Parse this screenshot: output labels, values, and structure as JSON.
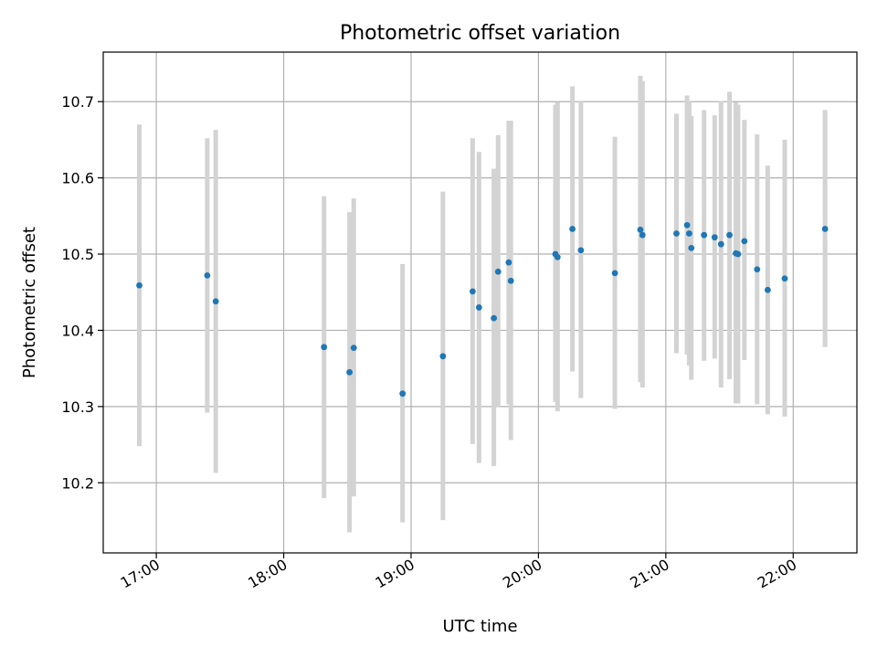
{
  "chart_data": {
    "type": "scatter",
    "title": "Photometric offset variation",
    "xlabel": "UTC time",
    "ylabel": "Photometric offset",
    "xlim": [
      "16:35",
      "22:30"
    ],
    "ylim": [
      10.108,
      10.765
    ],
    "grid": true,
    "x_ticks": [
      "17:00",
      "18:00",
      "19:00",
      "20:00",
      "21:00",
      "22:00"
    ],
    "y_ticks": [
      10.2,
      10.3,
      10.4,
      10.5,
      10.6,
      10.7
    ],
    "y_tick_labels": [
      "10.2",
      "10.3",
      "10.4",
      "10.5",
      "10.6",
      "10.7"
    ],
    "colors": {
      "points": "#1f77b4",
      "error_bars": "#d3d3d3",
      "grid": "#b0b0b0"
    },
    "points": [
      {
        "x": "16:52",
        "y": 10.459,
        "err_low": 10.248,
        "err_high": 10.67
      },
      {
        "x": "17:24",
        "y": 10.472,
        "err_low": 10.292,
        "err_high": 10.652
      },
      {
        "x": "17:28",
        "y": 10.438,
        "err_low": 10.213,
        "err_high": 10.663
      },
      {
        "x": "18:19",
        "y": 10.378,
        "err_low": 10.18,
        "err_high": 10.576
      },
      {
        "x": "18:31",
        "y": 10.345,
        "err_low": 10.135,
        "err_high": 10.555
      },
      {
        "x": "18:33",
        "y": 10.377,
        "err_low": 10.182,
        "err_high": 10.573
      },
      {
        "x": "18:56",
        "y": 10.317,
        "err_low": 10.148,
        "err_high": 10.487
      },
      {
        "x": "19:15",
        "y": 10.366,
        "err_low": 10.151,
        "err_high": 10.582
      },
      {
        "x": "19:29",
        "y": 10.451,
        "err_low": 10.251,
        "err_high": 10.652
      },
      {
        "x": "19:32",
        "y": 10.43,
        "err_low": 10.226,
        "err_high": 10.634
      },
      {
        "x": "19:39",
        "y": 10.416,
        "err_low": 10.222,
        "err_high": 10.612
      },
      {
        "x": "19:41",
        "y": 10.477,
        "err_low": 10.299,
        "err_high": 10.656
      },
      {
        "x": "19:46",
        "y": 10.489,
        "err_low": 10.303,
        "err_high": 10.675
      },
      {
        "x": "19:47",
        "y": 10.465,
        "err_low": 10.256,
        "err_high": 10.675
      },
      {
        "x": "20:08",
        "y": 10.5,
        "err_low": 10.306,
        "err_high": 10.696
      },
      {
        "x": "20:09",
        "y": 10.496,
        "err_low": 10.294,
        "err_high": 10.699
      },
      {
        "x": "20:16",
        "y": 10.533,
        "err_low": 10.346,
        "err_high": 10.72
      },
      {
        "x": "20:20",
        "y": 10.505,
        "err_low": 10.311,
        "err_high": 10.7
      },
      {
        "x": "20:36",
        "y": 10.475,
        "err_low": 10.297,
        "err_high": 10.654
      },
      {
        "x": "20:48",
        "y": 10.532,
        "err_low": 10.332,
        "err_high": 10.734
      },
      {
        "x": "20:49",
        "y": 10.525,
        "err_low": 10.325,
        "err_high": 10.727
      },
      {
        "x": "21:05",
        "y": 10.527,
        "err_low": 10.37,
        "err_high": 10.684
      },
      {
        "x": "21:10",
        "y": 10.538,
        "err_low": 10.368,
        "err_high": 10.708
      },
      {
        "x": "21:11",
        "y": 10.527,
        "err_low": 10.354,
        "err_high": 10.7
      },
      {
        "x": "21:12",
        "y": 10.508,
        "err_low": 10.335,
        "err_high": 10.681
      },
      {
        "x": "21:18",
        "y": 10.525,
        "err_low": 10.36,
        "err_high": 10.689
      },
      {
        "x": "21:23",
        "y": 10.522,
        "err_low": 10.363,
        "err_high": 10.682
      },
      {
        "x": "21:26",
        "y": 10.513,
        "err_low": 10.325,
        "err_high": 10.701
      },
      {
        "x": "21:30",
        "y": 10.525,
        "err_low": 10.336,
        "err_high": 10.713
      },
      {
        "x": "21:33",
        "y": 10.501,
        "err_low": 10.304,
        "err_high": 10.699
      },
      {
        "x": "21:34",
        "y": 10.5,
        "err_low": 10.304,
        "err_high": 10.696
      },
      {
        "x": "21:37",
        "y": 10.517,
        "err_low": 10.361,
        "err_high": 10.676
      },
      {
        "x": "21:43",
        "y": 10.48,
        "err_low": 10.303,
        "err_high": 10.657
      },
      {
        "x": "21:48",
        "y": 10.453,
        "err_low": 10.29,
        "err_high": 10.616
      },
      {
        "x": "21:56",
        "y": 10.468,
        "err_low": 10.287,
        "err_high": 10.65
      },
      {
        "x": "22:15",
        "y": 10.533,
        "err_low": 10.378,
        "err_high": 10.689
      }
    ]
  }
}
